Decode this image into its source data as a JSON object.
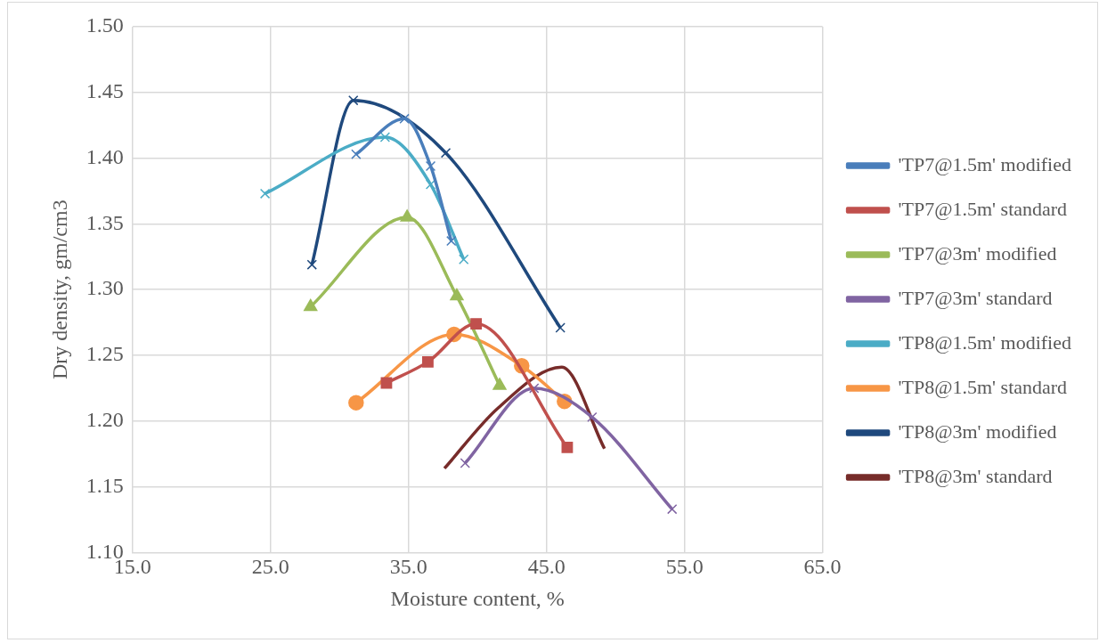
{
  "chart_data": {
    "type": "line",
    "xlabel": "Moisture content, %",
    "ylabel": "Dry density, gm/cm3",
    "xlim": [
      15,
      65
    ],
    "xticks": [
      {
        "value": 15,
        "label": "15.0"
      },
      {
        "value": 25,
        "label": "25.0"
      },
      {
        "value": 35,
        "label": "35.0"
      },
      {
        "value": 45,
        "label": "45.0"
      },
      {
        "value": 55,
        "label": "55.0"
      },
      {
        "value": 65,
        "label": "65.0"
      }
    ],
    "ylim": [
      1.1,
      1.5
    ],
    "yticks": [
      {
        "value": 1.1,
        "label": "1.10"
      },
      {
        "value": 1.15,
        "label": "1.15"
      },
      {
        "value": 1.2,
        "label": "1.20"
      },
      {
        "value": 1.25,
        "label": "1.25"
      },
      {
        "value": 1.3,
        "label": "1.30"
      },
      {
        "value": 1.35,
        "label": "1.35"
      },
      {
        "value": 1.4,
        "label": "1.40"
      },
      {
        "value": 1.45,
        "label": "1.45"
      },
      {
        "value": 1.5,
        "label": "1.50"
      }
    ],
    "grid": true,
    "legend": "right",
    "series": [
      {
        "name": "'TP7@1.5m' modified",
        "color": "#4a7ebb",
        "marker": "cross",
        "x": [
          31.2,
          34.7,
          36.6,
          38.1
        ],
        "values": [
          1.403,
          1.43,
          1.394,
          1.337
        ]
      },
      {
        "name": "'TP7@1.5m' standard",
        "color": "#c0504d",
        "marker": "square",
        "x": [
          33.4,
          36.4,
          39.9,
          46.5
        ],
        "values": [
          1.229,
          1.245,
          1.274,
          1.18
        ]
      },
      {
        "name": "'TP7@3m' modified",
        "color": "#9bbb59",
        "marker": "triangle",
        "x": [
          27.9,
          34.9,
          38.5,
          41.6
        ],
        "values": [
          1.287,
          1.355,
          1.295,
          1.227
        ]
      },
      {
        "name": "'TP7@3m' standard",
        "color": "#8064a2",
        "marker": "cross",
        "x": [
          39.1,
          44.1,
          48.3,
          54.1
        ],
        "values": [
          1.168,
          1.225,
          1.203,
          1.133
        ]
      },
      {
        "name": "'TP8@1.5m' modified",
        "color": "#4bacc6",
        "marker": "cross",
        "x": [
          24.6,
          33.3,
          36.6,
          39.0
        ],
        "values": [
          1.373,
          1.416,
          1.38,
          1.323
        ]
      },
      {
        "name": "'TP8@1.5m' standard",
        "color": "#f79646",
        "marker": "circle",
        "x": [
          31.2,
          38.3,
          43.2,
          46.3
        ],
        "values": [
          1.214,
          1.266,
          1.242,
          1.215
        ]
      },
      {
        "name": "'TP8@3m' modified",
        "color": "#1f497d",
        "marker": "cross",
        "x": [
          28.0,
          31.0,
          37.7,
          46.0
        ],
        "values": [
          1.319,
          1.444,
          1.404,
          1.271
        ]
      },
      {
        "name": "'TP8@3m' standard",
        "color": "#772c2a",
        "marker": "none",
        "x": [
          37.6,
          41.5,
          46.1,
          49.2
        ],
        "values": [
          1.164,
          1.21,
          1.241,
          1.179
        ]
      }
    ]
  }
}
